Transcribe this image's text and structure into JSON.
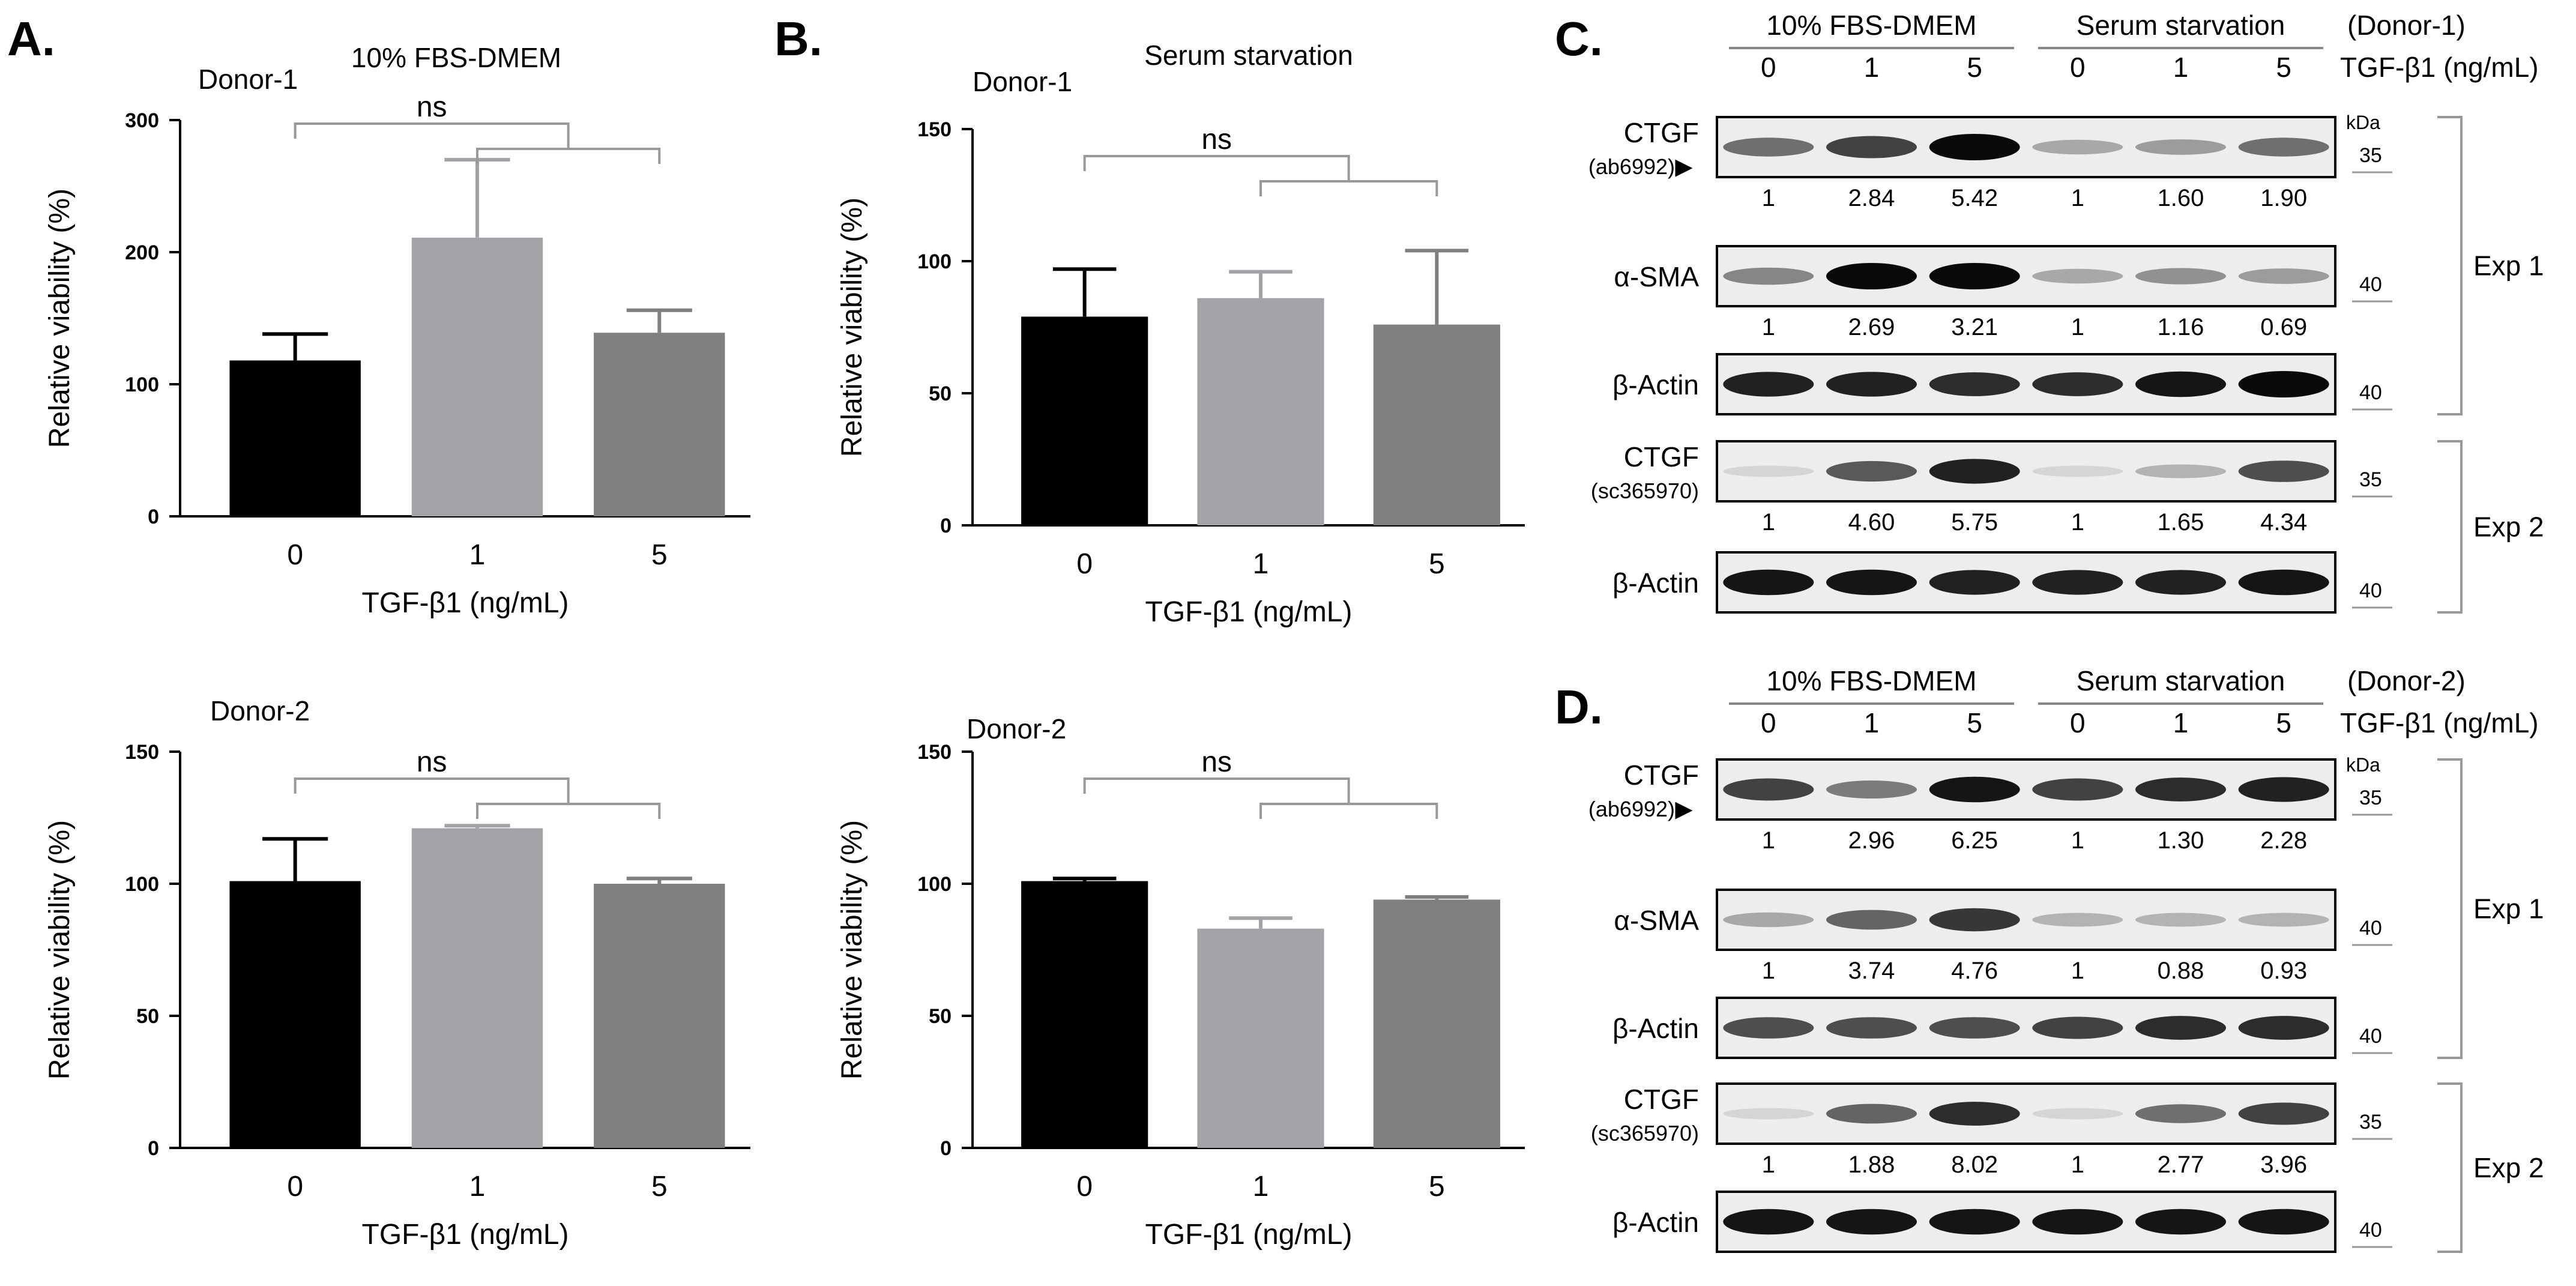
{
  "panels": {
    "A": {
      "label": "A."
    },
    "B": {
      "label": "B."
    },
    "C": {
      "label": "C."
    },
    "D": {
      "label": "D."
    }
  },
  "chart_data": [
    {
      "id": "A1",
      "panel": "A",
      "type": "bar",
      "title": "10% FBS-DMEM",
      "donor": "Donor-1",
      "categories": [
        "0",
        "1",
        "5"
      ],
      "values": [
        118,
        211,
        139
      ],
      "errors": [
        20,
        59,
        17
      ],
      "colors": [
        "#000000",
        "#a3a3a7",
        "#7f7f81"
      ],
      "xlabel": "TGF-β1 (ng/mL)",
      "ylabel": "Relative viability (%)",
      "ylim": [
        0,
        300
      ],
      "yticks": [
        "0",
        "100",
        "200",
        "300"
      ],
      "significance": "ns"
    },
    {
      "id": "A2",
      "panel": "A",
      "type": "bar",
      "title": "",
      "donor": "Donor-2",
      "categories": [
        "0",
        "1",
        "5"
      ],
      "values": [
        101,
        121,
        100
      ],
      "errors": [
        16,
        1,
        2
      ],
      "colors": [
        "#000000",
        "#a3a3a7",
        "#7f7f81"
      ],
      "xlabel": "TGF-β1 (ng/mL)",
      "ylabel": "Relative viability (%)",
      "ylim": [
        0,
        150
      ],
      "yticks": [
        "0",
        "50",
        "100",
        "150"
      ],
      "significance": "ns"
    },
    {
      "id": "B1",
      "panel": "B",
      "type": "bar",
      "title": "Serum starvation",
      "donor": "Donor-1",
      "categories": [
        "0",
        "1",
        "5"
      ],
      "values": [
        79,
        86,
        76
      ],
      "errors": [
        18,
        10,
        28
      ],
      "colors": [
        "#000000",
        "#a3a3a7",
        "#7f7f81"
      ],
      "xlabel": "TGF-β1 (ng/mL)",
      "ylabel": "Relative viability (%)",
      "ylim": [
        0,
        150
      ],
      "yticks": [
        "0",
        "50",
        "100",
        "150"
      ],
      "significance": "ns"
    },
    {
      "id": "B2",
      "panel": "B",
      "type": "bar",
      "title": "",
      "donor": "Donor-2",
      "categories": [
        "0",
        "1",
        "5"
      ],
      "values": [
        101,
        83,
        94
      ],
      "errors": [
        1,
        4,
        1
      ],
      "colors": [
        "#000000",
        "#a3a3a7",
        "#7f7f81"
      ],
      "xlabel": "TGF-β1 (ng/mL)",
      "ylabel": "Relative viability (%)",
      "ylim": [
        0,
        150
      ],
      "yticks": [
        "0",
        "50",
        "100",
        "150"
      ],
      "significance": "ns"
    }
  ],
  "blots": [
    {
      "id": "C",
      "panel": "C",
      "group1": "10% FBS-DMEM",
      "group2": "Serum starvation",
      "donor": "(Donor-1)",
      "treatment": "TGF-β1 (ng/mL)",
      "lanes": [
        "0",
        "1",
        "5",
        "0",
        "1",
        "5"
      ],
      "kda": "kDa",
      "experiments": [
        {
          "label": "Exp 1"
        },
        {
          "label": "Exp 2"
        }
      ],
      "rows": [
        {
          "name": "CTGF",
          "sub": "(ab6992)",
          "arrow": "▶",
          "mw": [
            "35"
          ],
          "exp": 1,
          "bands": [
            0.55,
            0.75,
            1.0,
            0.3,
            0.35,
            0.55
          ],
          "quant": [
            "1",
            "2.84",
            "5.42",
            "1",
            "1.60",
            "1.90"
          ]
        },
        {
          "name": "α-SMA",
          "sub": "",
          "arrow": "",
          "mw": [
            "40"
          ],
          "exp": 1,
          "bands": [
            0.45,
            1.0,
            1.0,
            0.3,
            0.4,
            0.35
          ],
          "quant": [
            "1",
            "2.69",
            "3.21",
            "1",
            "1.16",
            "0.69"
          ]
        },
        {
          "name": "β-Actin",
          "sub": "",
          "arrow": "",
          "mw": [
            "40"
          ],
          "exp": 1,
          "bands": [
            0.9,
            0.9,
            0.85,
            0.85,
            0.95,
            1.0
          ],
          "quant": []
        },
        {
          "name": "CTGF",
          "sub": "(sc365970)",
          "arrow": "",
          "mw": [
            "35"
          ],
          "exp": 2,
          "bands": [
            0.1,
            0.65,
            0.9,
            0.1,
            0.25,
            0.7
          ],
          "quant": [
            "1",
            "4.60",
            "5.75",
            "1",
            "1.65",
            "4.34"
          ]
        },
        {
          "name": "β-Actin",
          "sub": "",
          "arrow": "",
          "mw": [
            "40"
          ],
          "exp": 2,
          "bands": [
            0.95,
            0.95,
            0.9,
            0.9,
            0.9,
            0.95
          ],
          "quant": []
        }
      ]
    },
    {
      "id": "D",
      "panel": "D",
      "group1": "10% FBS-DMEM",
      "group2": "Serum starvation",
      "donor": "(Donor-2)",
      "treatment": "TGF-β1 (ng/mL)",
      "lanes": [
        "0",
        "1",
        "5",
        "0",
        "1",
        "5"
      ],
      "kda": "kDa",
      "experiments": [
        {
          "label": "Exp 1"
        },
        {
          "label": "Exp 2"
        }
      ],
      "rows": [
        {
          "name": "CTGF",
          "sub": "(ab6992)",
          "arrow": "▶",
          "mw": [
            "35"
          ],
          "exp": 1,
          "bands": [
            0.75,
            0.5,
            0.95,
            0.75,
            0.85,
            0.9
          ],
          "quant": [
            "1",
            "2.96",
            "6.25",
            "1",
            "1.30",
            "2.28"
          ]
        },
        {
          "name": "α-SMA",
          "sub": "",
          "arrow": "",
          "mw": [
            "40"
          ],
          "exp": 1,
          "bands": [
            0.3,
            0.6,
            0.8,
            0.25,
            0.25,
            0.25
          ],
          "quant": [
            "1",
            "3.74",
            "4.76",
            "1",
            "0.88",
            "0.93"
          ]
        },
        {
          "name": "β-Actin",
          "sub": "",
          "arrow": "",
          "mw": [
            "40"
          ],
          "exp": 1,
          "bands": [
            0.7,
            0.7,
            0.7,
            0.75,
            0.85,
            0.85
          ],
          "quant": []
        },
        {
          "name": "CTGF",
          "sub": "(sc365970)",
          "arrow": "",
          "mw": [
            "35"
          ],
          "exp": 2,
          "bands": [
            0.1,
            0.6,
            0.85,
            0.1,
            0.55,
            0.75
          ],
          "quant": [
            "1",
            "1.88",
            "8.02",
            "1",
            "2.77",
            "3.96"
          ]
        },
        {
          "name": "β-Actin",
          "sub": "",
          "arrow": "",
          "mw": [
            "40"
          ],
          "exp": 2,
          "bands": [
            0.95,
            0.95,
            0.95,
            0.95,
            0.95,
            0.95
          ],
          "quant": []
        }
      ]
    }
  ]
}
